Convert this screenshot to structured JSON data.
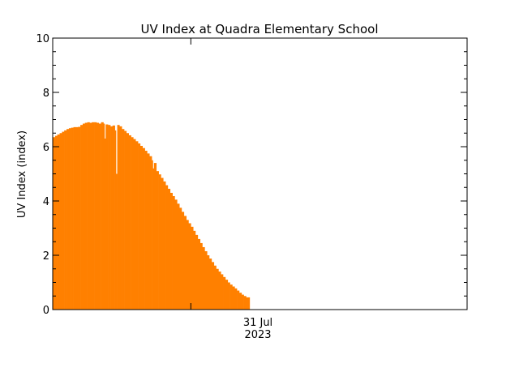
{
  "chart_data": {
    "type": "area",
    "title": "UV Index at Quadra Elementary School",
    "ylabel": "UV Index (index)",
    "xlabel": "",
    "ylim": [
      0,
      10
    ],
    "yticks": [
      0,
      2,
      4,
      6,
      8,
      10
    ],
    "ytick_labels": [
      "0",
      "2",
      "4",
      "6",
      "8",
      "10"
    ],
    "x_axis_labels": {
      "date": "31 Jul",
      "year": "2023"
    },
    "x_unit": "hours since 00:00 on 31 Jul 2023",
    "xlim": [
      -10,
      20
    ],
    "x_date_tick": 0,
    "series": [
      {
        "color": "#ff8000",
        "points": [
          [
            -10.0,
            6.35
          ],
          [
            -9.83,
            6.4
          ],
          [
            -9.67,
            6.45
          ],
          [
            -9.5,
            6.5
          ],
          [
            -9.33,
            6.55
          ],
          [
            -9.17,
            6.6
          ],
          [
            -9.0,
            6.65
          ],
          [
            -8.83,
            6.68
          ],
          [
            -8.67,
            6.7
          ],
          [
            -8.5,
            6.72
          ],
          [
            -8.33,
            6.72
          ],
          [
            -8.17,
            6.73
          ],
          [
            -8.0,
            6.8
          ],
          [
            -7.83,
            6.85
          ],
          [
            -7.67,
            6.88
          ],
          [
            -7.5,
            6.9
          ],
          [
            -7.33,
            6.88
          ],
          [
            -7.17,
            6.9
          ],
          [
            -7.0,
            6.9
          ],
          [
            -6.83,
            6.88
          ],
          [
            -6.67,
            6.85
          ],
          [
            -6.5,
            6.9
          ],
          [
            -6.33,
            6.85
          ],
          [
            -6.25,
            6.3
          ],
          [
            -6.17,
            6.82
          ],
          [
            -6.0,
            6.8
          ],
          [
            -5.83,
            6.75
          ],
          [
            -5.67,
            6.78
          ],
          [
            -5.5,
            6.6
          ],
          [
            -5.42,
            5.0
          ],
          [
            -5.33,
            6.8
          ],
          [
            -5.17,
            6.75
          ],
          [
            -5.0,
            6.65
          ],
          [
            -4.83,
            6.58
          ],
          [
            -4.67,
            6.5
          ],
          [
            -4.5,
            6.42
          ],
          [
            -4.33,
            6.35
          ],
          [
            -4.17,
            6.28
          ],
          [
            -4.0,
            6.2
          ],
          [
            -3.83,
            6.12
          ],
          [
            -3.67,
            6.03
          ],
          [
            -3.5,
            5.95
          ],
          [
            -3.33,
            5.85
          ],
          [
            -3.17,
            5.75
          ],
          [
            -3.0,
            5.65
          ],
          [
            -2.83,
            5.5
          ],
          [
            -2.75,
            5.2
          ],
          [
            -2.67,
            5.4
          ],
          [
            -2.5,
            5.1
          ],
          [
            -2.33,
            4.98
          ],
          [
            -2.17,
            4.85
          ],
          [
            -2.0,
            4.72
          ],
          [
            -1.83,
            4.58
          ],
          [
            -1.67,
            4.45
          ],
          [
            -1.5,
            4.3
          ],
          [
            -1.33,
            4.18
          ],
          [
            -1.17,
            4.05
          ],
          [
            -1.0,
            3.9
          ],
          [
            -0.83,
            3.75
          ],
          [
            -0.67,
            3.6
          ],
          [
            -0.5,
            3.45
          ],
          [
            -0.33,
            3.3
          ],
          [
            -0.17,
            3.18
          ],
          [
            0.0,
            3.05
          ],
          [
            0.17,
            2.9
          ],
          [
            0.33,
            2.75
          ],
          [
            0.5,
            2.6
          ],
          [
            0.67,
            2.45
          ],
          [
            0.83,
            2.3
          ],
          [
            1.0,
            2.15
          ],
          [
            1.17,
            2.0
          ],
          [
            1.33,
            1.88
          ],
          [
            1.5,
            1.75
          ],
          [
            1.67,
            1.62
          ],
          [
            1.83,
            1.5
          ],
          [
            2.0,
            1.4
          ],
          [
            2.17,
            1.3
          ],
          [
            2.33,
            1.2
          ],
          [
            2.5,
            1.1
          ],
          [
            2.67,
            1.0
          ],
          [
            2.83,
            0.92
          ],
          [
            3.0,
            0.85
          ],
          [
            3.17,
            0.78
          ],
          [
            3.33,
            0.7
          ],
          [
            3.5,
            0.62
          ],
          [
            3.67,
            0.55
          ],
          [
            3.83,
            0.5
          ],
          [
            4.0,
            0.45
          ],
          [
            4.17,
            0.45
          ]
        ]
      }
    ]
  }
}
